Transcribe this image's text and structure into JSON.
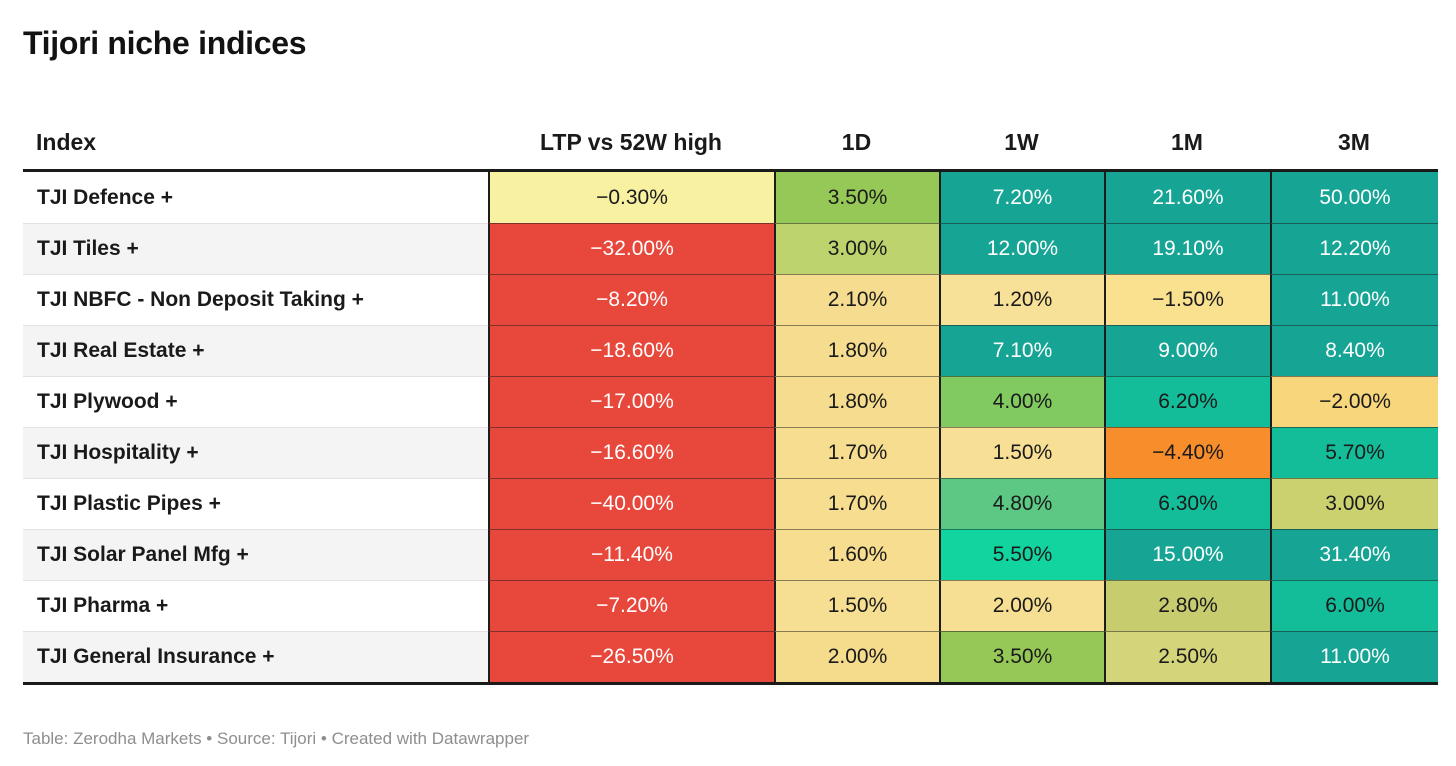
{
  "title": "Tijori niche indices",
  "footer": "Table: Zerodha Markets • Source: Tijori • Created with Datawrapper",
  "colors": {
    "header_rule": "#1a1a1a",
    "row_stripe": "#f4f4f4",
    "negative_red": "#e8483c",
    "deep_teal": "#16a494",
    "bright_teal": "#13bd99",
    "emerald": "#11d49e",
    "orange": "#f78e2b",
    "pale_yellow": "#f8f1a2",
    "tan": "#f6dd90",
    "footer_text": "#8e8e8e"
  },
  "table": {
    "columns": [
      {
        "key": "index",
        "label": "Index"
      },
      {
        "key": "ltp-vs-52w-high",
        "label": "LTP vs 52W high"
      },
      {
        "key": "1d",
        "label": "1D"
      },
      {
        "key": "1w",
        "label": "1W"
      },
      {
        "key": "1m",
        "label": "1M"
      },
      {
        "key": "3m",
        "label": "3M"
      }
    ],
    "rows": [
      {
        "label": "TJI Defence +",
        "cells": [
          {
            "v": "−0.30%",
            "bg": "#f8f1a2",
            "fg": "#1a1a1a"
          },
          {
            "v": "3.50%",
            "bg": "#96c857",
            "fg": "#1a1a1a"
          },
          {
            "v": "7.20%",
            "bg": "#16a494",
            "fg": "#ffffff"
          },
          {
            "v": "21.60%",
            "bg": "#16a494",
            "fg": "#ffffff"
          },
          {
            "v": "50.00%",
            "bg": "#16a494",
            "fg": "#ffffff"
          }
        ]
      },
      {
        "label": "TJI Tiles +",
        "cells": [
          {
            "v": "−32.00%",
            "bg": "#e8483c",
            "fg": "#ffffff"
          },
          {
            "v": "3.00%",
            "bg": "#bdd36d",
            "fg": "#1a1a1a"
          },
          {
            "v": "12.00%",
            "bg": "#16a494",
            "fg": "#ffffff"
          },
          {
            "v": "19.10%",
            "bg": "#16a494",
            "fg": "#ffffff"
          },
          {
            "v": "12.20%",
            "bg": "#16a494",
            "fg": "#ffffff"
          }
        ]
      },
      {
        "label": "TJI NBFC - Non Deposit Taking +",
        "cells": [
          {
            "v": "−8.20%",
            "bg": "#e8483c",
            "fg": "#ffffff"
          },
          {
            "v": "2.10%",
            "bg": "#f5dc8e",
            "fg": "#1a1a1a"
          },
          {
            "v": "1.20%",
            "bg": "#f7e097",
            "fg": "#1a1a1a"
          },
          {
            "v": "−1.50%",
            "bg": "#f9e190",
            "fg": "#1a1a1a"
          },
          {
            "v": "11.00%",
            "bg": "#16a494",
            "fg": "#ffffff"
          }
        ]
      },
      {
        "label": "TJI Real Estate +",
        "cells": [
          {
            "v": "−18.60%",
            "bg": "#e8483c",
            "fg": "#ffffff"
          },
          {
            "v": "1.80%",
            "bg": "#f5dc8e",
            "fg": "#1a1a1a"
          },
          {
            "v": "7.10%",
            "bg": "#16a494",
            "fg": "#ffffff"
          },
          {
            "v": "9.00%",
            "bg": "#16a494",
            "fg": "#ffffff"
          },
          {
            "v": "8.40%",
            "bg": "#16a494",
            "fg": "#ffffff"
          }
        ]
      },
      {
        "label": "TJI Plywood +",
        "cells": [
          {
            "v": "−17.00%",
            "bg": "#e8483c",
            "fg": "#ffffff"
          },
          {
            "v": "1.80%",
            "bg": "#f5dc8e",
            "fg": "#1a1a1a"
          },
          {
            "v": "4.00%",
            "bg": "#80ca60",
            "fg": "#1a1a1a"
          },
          {
            "v": "6.20%",
            "bg": "#13bd99",
            "fg": "#1a1a1a"
          },
          {
            "v": "−2.00%",
            "bg": "#f8d67c",
            "fg": "#1a1a1a"
          }
        ]
      },
      {
        "label": "TJI Hospitality +",
        "cells": [
          {
            "v": "−16.60%",
            "bg": "#e8483c",
            "fg": "#ffffff"
          },
          {
            "v": "1.70%",
            "bg": "#f6dd90",
            "fg": "#1a1a1a"
          },
          {
            "v": "1.50%",
            "bg": "#f7e095",
            "fg": "#1a1a1a"
          },
          {
            "v": "−4.40%",
            "bg": "#f78e2b",
            "fg": "#1a1a1a"
          },
          {
            "v": "5.70%",
            "bg": "#13bd99",
            "fg": "#1a1a1a"
          }
        ]
      },
      {
        "label": "TJI Plastic Pipes +",
        "cells": [
          {
            "v": "−40.00%",
            "bg": "#e8483c",
            "fg": "#ffffff"
          },
          {
            "v": "1.70%",
            "bg": "#f6dd90",
            "fg": "#1a1a1a"
          },
          {
            "v": "4.80%",
            "bg": "#5dc884",
            "fg": "#1a1a1a"
          },
          {
            "v": "6.30%",
            "bg": "#13bd99",
            "fg": "#1a1a1a"
          },
          {
            "v": "3.00%",
            "bg": "#cbd16f",
            "fg": "#1a1a1a"
          }
        ]
      },
      {
        "label": "TJI Solar Panel Mfg +",
        "cells": [
          {
            "v": "−11.40%",
            "bg": "#e8483c",
            "fg": "#ffffff"
          },
          {
            "v": "1.60%",
            "bg": "#f6dd90",
            "fg": "#1a1a1a"
          },
          {
            "v": "5.50%",
            "bg": "#11d49e",
            "fg": "#1a1a1a"
          },
          {
            "v": "15.00%",
            "bg": "#16a494",
            "fg": "#ffffff"
          },
          {
            "v": "31.40%",
            "bg": "#16a494",
            "fg": "#ffffff"
          }
        ]
      },
      {
        "label": "TJI Pharma +",
        "cells": [
          {
            "v": "−7.20%",
            "bg": "#e8483c",
            "fg": "#ffffff"
          },
          {
            "v": "1.50%",
            "bg": "#f6de92",
            "fg": "#1a1a1a"
          },
          {
            "v": "2.00%",
            "bg": "#f6df92",
            "fg": "#1a1a1a"
          },
          {
            "v": "2.80%",
            "bg": "#c7cd6f",
            "fg": "#1a1a1a"
          },
          {
            "v": "6.00%",
            "bg": "#13bd99",
            "fg": "#1a1a1a"
          }
        ]
      },
      {
        "label": "TJI General Insurance +",
        "cells": [
          {
            "v": "−26.50%",
            "bg": "#e8483c",
            "fg": "#ffffff"
          },
          {
            "v": "2.00%",
            "bg": "#f5db8c",
            "fg": "#1a1a1a"
          },
          {
            "v": "3.50%",
            "bg": "#96c857",
            "fg": "#1a1a1a"
          },
          {
            "v": "2.50%",
            "bg": "#d4d47b",
            "fg": "#1a1a1a"
          },
          {
            "v": "11.00%",
            "bg": "#16a494",
            "fg": "#ffffff"
          }
        ]
      }
    ]
  },
  "chart_data": {
    "type": "table",
    "title": "Tijori niche indices",
    "columns": [
      "Index",
      "LTP vs 52W high",
      "1D",
      "1W",
      "1M",
      "3M"
    ],
    "units": "percent",
    "rows": [
      [
        "TJI Defence +",
        -0.3,
        3.5,
        7.2,
        21.6,
        50.0
      ],
      [
        "TJI Tiles +",
        -32.0,
        3.0,
        12.0,
        19.1,
        12.2
      ],
      [
        "TJI NBFC - Non Deposit Taking +",
        -8.2,
        2.1,
        1.2,
        -1.5,
        11.0
      ],
      [
        "TJI Real Estate +",
        -18.6,
        1.8,
        7.1,
        9.0,
        8.4
      ],
      [
        "TJI Plywood +",
        -17.0,
        1.8,
        4.0,
        6.2,
        -2.0
      ],
      [
        "TJI Hospitality +",
        -16.6,
        1.7,
        1.5,
        -4.4,
        5.7
      ],
      [
        "TJI Plastic Pipes +",
        -40.0,
        1.7,
        4.8,
        6.3,
        3.0
      ],
      [
        "TJI Solar Panel Mfg +",
        -11.4,
        1.6,
        5.5,
        15.0,
        31.4
      ],
      [
        "TJI Pharma +",
        -7.2,
        1.5,
        2.0,
        2.8,
        6.0
      ],
      [
        "TJI General Insurance +",
        -26.5,
        2.0,
        3.5,
        2.5,
        11.0
      ]
    ],
    "layout": "heatmap-colored table; red=negative, yellow/tan=small, green/teal=positive gains"
  }
}
